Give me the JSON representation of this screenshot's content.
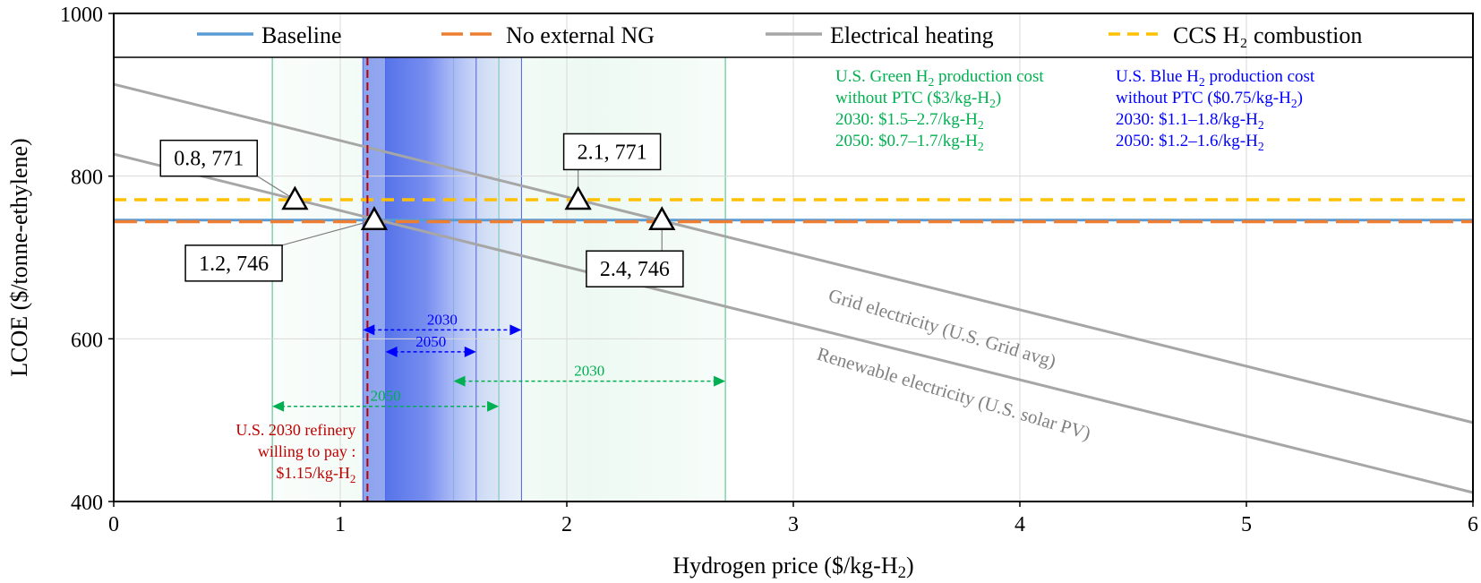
{
  "chart_data": {
    "type": "line",
    "xlabel_main": "Hydrogen price ($/kg-H",
    "xlabel_sub": "2",
    "xlabel_end": ")",
    "ylabel": "LCOE ($/tonne-ethylene)",
    "xlim": [
      0,
      6
    ],
    "ylim": [
      400,
      1000
    ],
    "x_ticks": [
      "0",
      "1",
      "2",
      "3",
      "4",
      "5",
      "6"
    ],
    "y_ticks": [
      "400",
      "600",
      "800",
      "1000"
    ],
    "grid": true,
    "legend_position": "top",
    "series": [
      {
        "name": "Baseline",
        "style": "solid",
        "color": "#5b9bd5",
        "x": [
          0,
          6
        ],
        "y": [
          746,
          746
        ]
      },
      {
        "name": "No external NG",
        "style": "long-dash",
        "color": "#ed7d31",
        "x": [
          0,
          6
        ],
        "y": [
          744,
          744
        ]
      },
      {
        "name": "Electrical heating",
        "style": "solid",
        "color": "#a6a6a6",
        "x": [
          0,
          6
        ],
        "y": [
          913,
          497
        ]
      },
      {
        "name": "Electrical heating",
        "style": "solid",
        "color": "#a6a6a6",
        "x": [
          0,
          6
        ],
        "y": [
          827,
          411
        ]
      },
      {
        "name": "CCS H₂ combustion",
        "style": "dash",
        "color": "#ffc000",
        "x": [
          0,
          6
        ],
        "y": [
          771,
          771
        ]
      }
    ],
    "line_labels": [
      {
        "text": "Grid electricity (U.S. Grid avg)",
        "x": 3.15,
        "y": 647,
        "angle": 16.5
      },
      {
        "text": "Renewable electricity (U.S. solar PV)",
        "x": 3.1,
        "y": 575,
        "angle": 16.5
      }
    ],
    "markers": [
      {
        "x": 0.8,
        "y": 771,
        "label": "0.8, 771",
        "box_x": 0.42,
        "box_y": 822
      },
      {
        "x": 1.15,
        "y": 746,
        "label": "1.2, 746",
        "box_x": 0.53,
        "box_y": 693
      },
      {
        "x": 2.05,
        "y": 771,
        "label": "2.1, 771",
        "box_x": 2.2,
        "box_y": 830
      },
      {
        "x": 2.42,
        "y": 746,
        "label": "2.4, 746",
        "box_x": 2.3,
        "box_y": 686
      }
    ],
    "shaded_ranges": [
      {
        "name": "green-2050",
        "kind": "green",
        "from": 0.7,
        "to": 1.7,
        "intensity": 0.25
      },
      {
        "name": "green-2030",
        "kind": "green",
        "from": 1.5,
        "to": 2.7,
        "intensity": 0.35
      },
      {
        "name": "blue-2030",
        "kind": "blue",
        "from": 1.1,
        "to": 1.8,
        "intensity": 0.7
      },
      {
        "name": "blue-2050",
        "kind": "blue",
        "from": 1.2,
        "to": 1.6,
        "intensity": 1.0
      }
    ],
    "range_arrows": [
      {
        "label": "2030",
        "from": 1.1,
        "to": 1.8,
        "y": 611,
        "color": "#0000ff"
      },
      {
        "label": "2050",
        "from": 1.2,
        "to": 1.6,
        "y": 584,
        "color": "#0000ff"
      },
      {
        "label": "2030",
        "from": 1.5,
        "to": 2.7,
        "y": 548,
        "color": "#00b050"
      },
      {
        "label": "2050",
        "from": 0.7,
        "to": 1.7,
        "y": 517,
        "color": "#00b050"
      }
    ],
    "refinery_price": {
      "x": 1.12,
      "lines": [
        "U.S. 2030 refinery",
        "willing to pay :",
        "$1.15/kg-H"
      ],
      "sub": "2"
    },
    "green_note": {
      "lines": [
        {
          "text": "U.S. Green H",
          "sub": "2",
          "tail": " production cost"
        },
        {
          "text": "without PTC ($3/kg-H",
          "sub": "2",
          "tail": ")"
        },
        {
          "text": "2030: $1.5–2.7/kg-H",
          "sub": "2",
          "tail": ""
        },
        {
          "text": "2050: $0.7–1.7/kg-H",
          "sub": "2",
          "tail": ""
        }
      ]
    },
    "blue_note": {
      "lines": [
        {
          "text": "U.S. Blue H",
          "sub": "2",
          "tail": " production cost"
        },
        {
          "text": "without PTC ($0.75/kg-H",
          "sub": "2",
          "tail": ")"
        },
        {
          "text": "2030: $1.1–1.8/kg-H",
          "sub": "2",
          "tail": ""
        },
        {
          "text": "2050: $1.2–1.6/kg-H",
          "sub": "2",
          "tail": ""
        }
      ]
    },
    "legend": [
      {
        "name": "Baseline",
        "style": "solid",
        "color": "#5b9bd5"
      },
      {
        "name": "No external NG",
        "style": "long-dash",
        "color": "#ed7d31"
      },
      {
        "name": "Electrical heating",
        "style": "solid",
        "color": "#a6a6a6"
      },
      {
        "name": "CCS H₂ combustion",
        "style": "dash",
        "color": "#ffc000"
      }
    ],
    "colors": {
      "green_text": "#00b050",
      "blue_text": "#0000ff",
      "refinery": "#c00000",
      "gridline": "#d9d9d9"
    }
  }
}
